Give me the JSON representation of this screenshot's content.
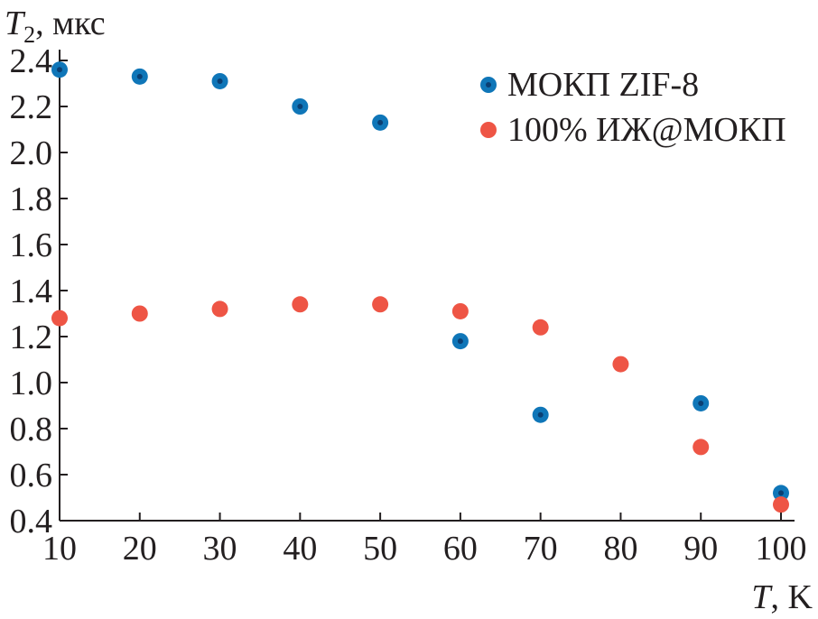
{
  "chart_data": {
    "type": "scatter",
    "title": "",
    "xlabel": {
      "symbol": "T",
      "unit": ", K"
    },
    "ylabel": {
      "symbol": "T",
      "subscript": "2",
      "unit": ", мкс"
    },
    "xlim": [
      10,
      100
    ],
    "ylim": [
      0.4,
      2.4
    ],
    "x_ticks": [
      10,
      20,
      30,
      40,
      50,
      60,
      70,
      80,
      90,
      100
    ],
    "y_ticks": [
      0.4,
      0.6,
      0.8,
      1.0,
      1.2,
      1.4,
      1.6,
      1.8,
      2.0,
      2.2,
      2.4
    ],
    "y_tick_labels": [
      "0.4",
      "0.6",
      "0.8",
      "1.0",
      "1.2",
      "1.4",
      "1.6",
      "1.8",
      "2.0",
      "2.2",
      "2.4"
    ],
    "grid": false,
    "legend_position": "top-right",
    "series": [
      {
        "name": "МОКП ZIF-8",
        "color": "#0f76b8",
        "core_color": "#0a3f73",
        "marker": "circle",
        "points": [
          {
            "x": 10,
            "y": 2.36
          },
          {
            "x": 20,
            "y": 2.33
          },
          {
            "x": 30,
            "y": 2.31
          },
          {
            "x": 40,
            "y": 2.2
          },
          {
            "x": 50,
            "y": 2.13
          },
          {
            "x": 60,
            "y": 1.18
          },
          {
            "x": 70,
            "y": 0.86
          },
          {
            "x": 90,
            "y": 0.91
          },
          {
            "x": 100,
            "y": 0.52
          }
        ]
      },
      {
        "name": "100% ИЖ@МОКП",
        "color": "#ee5545",
        "core_color": "#ee5545",
        "marker": "circle",
        "points": [
          {
            "x": 10,
            "y": 1.28
          },
          {
            "x": 20,
            "y": 1.3
          },
          {
            "x": 30,
            "y": 1.32
          },
          {
            "x": 40,
            "y": 1.34
          },
          {
            "x": 50,
            "y": 1.34
          },
          {
            "x": 60,
            "y": 1.31
          },
          {
            "x": 70,
            "y": 1.24
          },
          {
            "x": 80,
            "y": 1.08
          },
          {
            "x": 90,
            "y": 0.72
          },
          {
            "x": 100,
            "y": 0.47
          }
        ]
      }
    ]
  }
}
